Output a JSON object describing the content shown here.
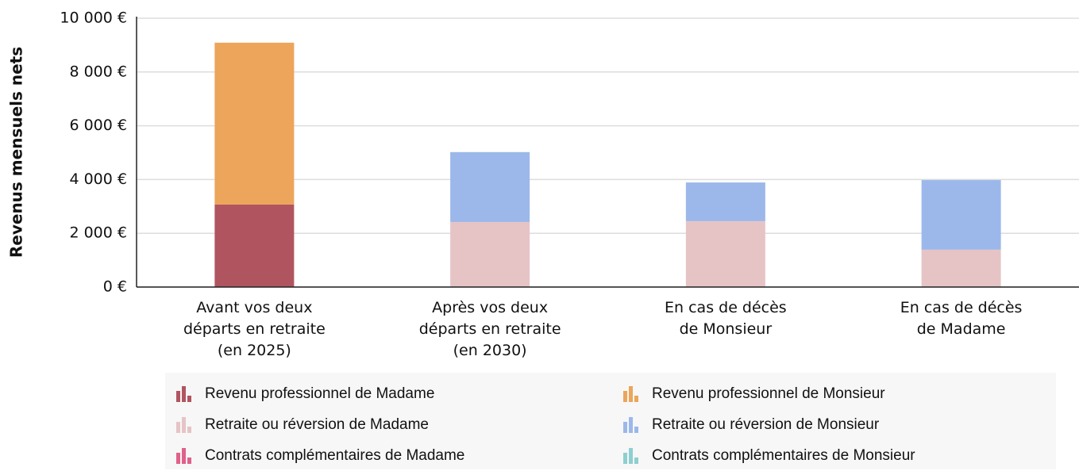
{
  "chart_data": {
    "type": "stacked_bar",
    "y_label": "Revenus mensuels nets",
    "categories": [
      [
        "Avant vos deux",
        "départs en retraite",
        "(en 2025)"
      ],
      [
        "Après vos deux",
        "départs en retraite",
        "(en 2030)"
      ],
      [
        "En cas de décès",
        "de Monsieur"
      ],
      [
        "En cas de décès",
        "de Madame"
      ]
    ],
    "series": [
      {
        "name": "Revenu professionnel de Madame",
        "color": "#b05560",
        "values": [
          3070,
          0,
          0,
          0
        ]
      },
      {
        "name": "Revenu professionnel de Monsieur",
        "color": "#eca55a",
        "values": [
          6020,
          0,
          0,
          0
        ]
      },
      {
        "name": "Retraite ou réversion de Madame",
        "color": "#e6c4c6",
        "values": [
          0,
          2420,
          2450,
          1390
        ]
      },
      {
        "name": "Retraite ou réversion de Monsieur",
        "color": "#9cb8ea",
        "values": [
          0,
          2600,
          1440,
          2590
        ]
      },
      {
        "name": "Contrats complémentaires de Madame",
        "color": "#e0618a",
        "values": [
          0,
          0,
          0,
          0
        ]
      },
      {
        "name": "Contrats complémentaires de Monsieur",
        "color": "#8ecfd0",
        "values": [
          0,
          0,
          0,
          0
        ]
      }
    ],
    "ylim": [
      0,
      10000
    ],
    "yticks": [
      {
        "value": 0,
        "label": "0 €"
      },
      {
        "value": 2000,
        "label": "2 000 €"
      },
      {
        "value": 4000,
        "label": "4 000 €"
      },
      {
        "value": 6000,
        "label": "6 000 €"
      },
      {
        "value": 8000,
        "label": "8 000 €"
      },
      {
        "value": 10000,
        "label": "10 000 €"
      }
    ],
    "grid": true
  }
}
